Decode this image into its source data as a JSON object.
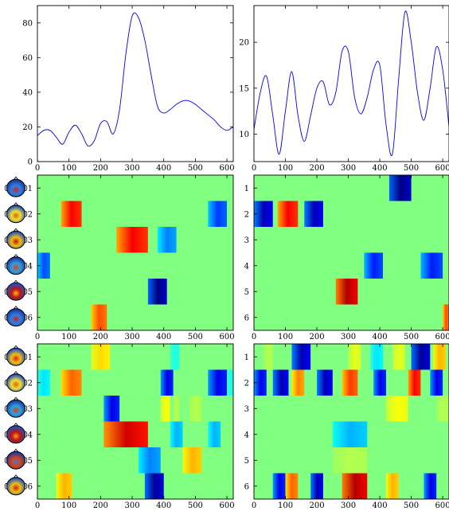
{
  "chart_data": [
    {
      "type": "line",
      "panel": "top-left",
      "color": "#0000ff",
      "xlim": [
        0,
        620
      ],
      "ylim": [
        0,
        90
      ],
      "xticks": [
        "0",
        "100",
        "200",
        "300",
        "400",
        "500",
        "600"
      ],
      "yticks": [
        "0",
        "20",
        "40",
        "60",
        "80"
      ],
      "x": [
        0,
        20,
        40,
        60,
        80,
        100,
        120,
        140,
        160,
        180,
        200,
        220,
        240,
        260,
        280,
        300,
        320,
        340,
        360,
        380,
        400,
        420,
        440,
        460,
        480,
        500,
        520,
        540,
        560,
        580,
        600,
        620
      ],
      "y": [
        15,
        18,
        18,
        14,
        10,
        17,
        21,
        16,
        9,
        12,
        22,
        23,
        16,
        30,
        62,
        84,
        83,
        70,
        50,
        32,
        28,
        30,
        33,
        35,
        35,
        33,
        30,
        27,
        24,
        20,
        18,
        20
      ]
    },
    {
      "type": "line",
      "panel": "top-right",
      "color": "#0000ff",
      "xlim": [
        0,
        620
      ],
      "ylim": [
        7,
        24
      ],
      "xticks": [
        "0",
        "100",
        "200",
        "300",
        "400",
        "500",
        "600"
      ],
      "yticks": [
        "10",
        "15",
        "20"
      ],
      "x": [
        0,
        20,
        40,
        60,
        80,
        100,
        120,
        140,
        160,
        180,
        200,
        220,
        240,
        260,
        280,
        300,
        320,
        340,
        360,
        380,
        400,
        420,
        440,
        460,
        480,
        500,
        520,
        540,
        560,
        580,
        600,
        620
      ],
      "y": [
        10.5,
        14.5,
        16.3,
        12,
        7.8,
        12.5,
        16.8,
        12,
        9.2,
        12,
        15,
        15.7,
        13.2,
        14.5,
        19,
        19,
        14,
        12.2,
        14,
        17,
        17.5,
        11,
        7.8,
        16,
        23.3,
        20,
        14.5,
        11.5,
        15,
        19.5,
        17,
        10.8
      ]
    },
    {
      "type": "heatmap",
      "panel": "middle-left",
      "colormap": "jet",
      "xlim": [
        0,
        620
      ],
      "xticks": [
        "0",
        "100",
        "200",
        "300",
        "400",
        "500",
        "600"
      ],
      "yticks": [
        "1",
        "2",
        "3",
        "4",
        "5",
        "6"
      ],
      "rows": [
        [],
        [
          [
            75,
            140,
            0.88
          ],
          [
            540,
            600,
            0.18
          ]
        ],
        [
          [
            250,
            350,
            0.88
          ],
          [
            380,
            440,
            0.25
          ]
        ],
        [
          [
            0,
            40,
            0.2
          ]
        ],
        [
          [
            350,
            410,
            0.0
          ]
        ],
        [
          [
            170,
            220,
            0.8
          ]
        ]
      ]
    },
    {
      "type": "heatmap",
      "panel": "middle-right",
      "colormap": "jet",
      "xlim": [
        0,
        620
      ],
      "xticks": [
        "0",
        "100",
        "200",
        "300",
        "400",
        "500",
        "600"
      ],
      "yticks": [
        "1",
        "2",
        "3",
        "4",
        "5",
        "6"
      ],
      "rows": [
        [
          [
            430,
            500,
            0.0
          ]
        ],
        [
          [
            0,
            60,
            0.05
          ],
          [
            75,
            140,
            0.88
          ],
          [
            160,
            220,
            0.05
          ]
        ],
        [],
        [
          [
            350,
            410,
            0.15
          ],
          [
            530,
            600,
            0.15
          ]
        ],
        [
          [
            260,
            330,
            0.95
          ]
        ],
        [
          [
            600,
            620,
            0.8
          ]
        ]
      ]
    },
    {
      "type": "heatmap",
      "panel": "bottom-left",
      "colormap": "jet",
      "xlim": [
        0,
        620
      ],
      "xticks": [
        "0",
        "100",
        "200",
        "300",
        "400",
        "500",
        "600"
      ],
      "yticks": [
        "1",
        "2",
        "3",
        "4",
        "5",
        "6"
      ],
      "rows": [
        [
          [
            170,
            230,
            0.66
          ],
          [
            420,
            450,
            0.4
          ]
        ],
        [
          [
            0,
            40,
            0.35
          ],
          [
            75,
            140,
            0.78
          ],
          [
            390,
            430,
            0.1
          ],
          [
            540,
            600,
            0.1
          ],
          [
            600,
            620,
            0.4
          ]
        ],
        [
          [
            30,
            60,
            0.5
          ],
          [
            140,
            180,
            0.5
          ],
          [
            210,
            260,
            0.1
          ],
          [
            390,
            420,
            0.62
          ],
          [
            430,
            450,
            0.55
          ],
          [
            480,
            520,
            0.55
          ]
        ],
        [
          [
            210,
            350,
            0.92
          ],
          [
            420,
            460,
            0.3
          ],
          [
            540,
            580,
            0.3
          ]
        ],
        [
          [
            320,
            390,
            0.25
          ],
          [
            460,
            520,
            0.7
          ]
        ],
        [
          [
            60,
            110,
            0.7
          ],
          [
            340,
            400,
            0.02
          ]
        ]
      ]
    },
    {
      "type": "heatmap",
      "panel": "bottom-right",
      "colormap": "jet",
      "xlim": [
        0,
        620
      ],
      "xticks": [
        "0",
        "100",
        "200",
        "300",
        "400",
        "500",
        "600"
      ],
      "yticks": [
        "1",
        "2",
        "3",
        "4",
        "5",
        "6"
      ],
      "rows": [
        [
          [
            30,
            60,
            0.55
          ],
          [
            120,
            180,
            0.05
          ],
          [
            300,
            340,
            0.6
          ],
          [
            370,
            410,
            0.35
          ],
          [
            440,
            480,
            0.6
          ],
          [
            500,
            560,
            0.02
          ],
          [
            570,
            610,
            0.7
          ]
        ],
        [
          [
            0,
            40,
            0.1
          ],
          [
            60,
            110,
            0.05
          ],
          [
            120,
            160,
            0.75
          ],
          [
            200,
            250,
            0.05
          ],
          [
            280,
            330,
            0.82
          ],
          [
            380,
            420,
            0.1
          ],
          [
            490,
            530,
            0.88
          ],
          [
            560,
            600,
            0.1
          ]
        ],
        [
          [
            100,
            140,
            0.5
          ],
          [
            320,
            350,
            0.5
          ],
          [
            420,
            490,
            0.62
          ],
          [
            580,
            620,
            0.55
          ]
        ],
        [
          [
            250,
            360,
            0.3
          ]
        ],
        [
          [
            250,
            360,
            0.55
          ]
        ],
        [
          [
            60,
            100,
            0.1
          ],
          [
            100,
            140,
            0.78
          ],
          [
            180,
            220,
            0.05
          ],
          [
            280,
            360,
            0.95
          ],
          [
            420,
            460,
            0.7
          ],
          [
            540,
            580,
            0.1
          ]
        ]
      ]
    }
  ],
  "head_icons": [
    {
      "name": "scalp-map-1",
      "colors": [
        "#1a3aa0",
        "#d02020",
        "#3080e0"
      ]
    },
    {
      "name": "scalp-map-2",
      "colors": [
        "#2050c0",
        "#e06010",
        "#f0e030"
      ]
    },
    {
      "name": "scalp-map-3",
      "colors": [
        "#2050c0",
        "#c01010",
        "#f0c010"
      ]
    },
    {
      "name": "scalp-map-4",
      "colors": [
        "#1a3aa0",
        "#e04010",
        "#30a0e0"
      ]
    },
    {
      "name": "scalp-map-5",
      "colors": [
        "#2050c0",
        "#f0c010",
        "#c01010"
      ]
    },
    {
      "name": "scalp-map-6",
      "colors": [
        "#1a3aa0",
        "#d02020",
        "#3080e0"
      ]
    },
    {
      "name": "scalp-map-7",
      "colors": [
        "#2050c0",
        "#e02010",
        "#f0c010"
      ]
    },
    {
      "name": "scalp-map-8",
      "colors": [
        "#2050c0",
        "#e06010",
        "#f0e030"
      ]
    },
    {
      "name": "scalp-map-9",
      "colors": [
        "#1a3aa0",
        "#d04010",
        "#30a0e0"
      ]
    },
    {
      "name": "scalp-map-10",
      "colors": [
        "#2050c0",
        "#f0a010",
        "#c01010"
      ]
    },
    {
      "name": "scalp-map-11",
      "colors": [
        "#1a3aa0",
        "#3080e0",
        "#e04010"
      ]
    },
    {
      "name": "scalp-map-12",
      "colors": [
        "#2050c0",
        "#d02020",
        "#f0c010"
      ]
    }
  ]
}
